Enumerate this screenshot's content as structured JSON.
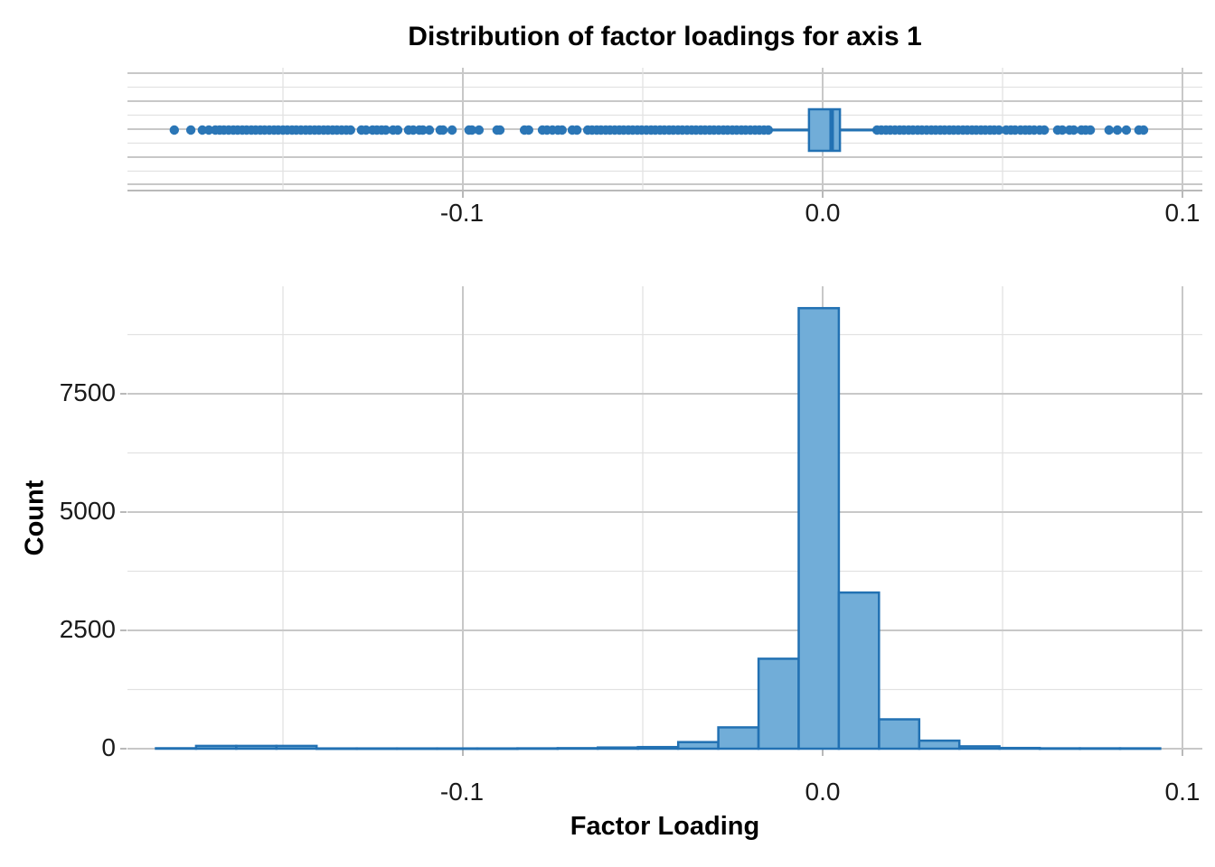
{
  "title": "Distribution of factor loadings for axis 1",
  "axes": {
    "x_tick_labels": [
      "-0.1",
      "0.0",
      "0.1"
    ],
    "y_tick_labels": [
      "0",
      "2500",
      "5000",
      "7500"
    ],
    "xlabel": "Factor Loading",
    "ylabel": "Count"
  },
  "colors": {
    "blue_stroke": "#2271b3",
    "blue_fill": "#71add8",
    "point_blue": "#2b76b6",
    "grid_major": "#c8c8c8",
    "grid_minor": "#e2e2e2",
    "axis_gray": "#b9b9b9"
  },
  "chart_data": [
    {
      "type": "boxplot",
      "orientation": "horizontal",
      "variable": "Factor Loading",
      "xlim": [
        -0.1932,
        0.1055
      ],
      "x_ticks": [
        -0.1,
        0.0,
        0.1
      ],
      "x_minor_ticks": [
        -0.15,
        -0.05,
        0.05
      ],
      "box": {
        "q1": -0.0038,
        "median": 0.0025,
        "q3": 0.0048,
        "whisker_low": -0.0143,
        "whisker_high": 0.0146
      },
      "outliers": [
        -0.1802,
        -0.1756,
        -0.1724,
        -0.1706,
        -0.1688,
        -0.1676,
        -0.1664,
        -0.1651,
        -0.1638,
        -0.1626,
        -0.1613,
        -0.1601,
        -0.1588,
        -0.1576,
        -0.1563,
        -0.1551,
        -0.1538,
        -0.1525,
        -0.1513,
        -0.15,
        -0.1488,
        -0.1475,
        -0.1463,
        -0.145,
        -0.1437,
        -0.1425,
        -0.1412,
        -0.14,
        -0.1387,
        -0.1375,
        -0.1362,
        -0.135,
        -0.1337,
        -0.1324,
        -0.1312,
        -0.1282,
        -0.1269,
        -0.1251,
        -0.1239,
        -0.1226,
        -0.1214,
        -0.1194,
        -0.1181,
        -0.1151,
        -0.1138,
        -0.1121,
        -0.1111,
        -0.1093,
        -0.1063,
        -0.1055,
        -0.103,
        -0.0983,
        -0.0975,
        -0.0955,
        -0.0905,
        -0.0897,
        -0.0829,
        -0.0817,
        -0.0779,
        -0.0766,
        -0.0751,
        -0.0736,
        -0.0724,
        -0.0696,
        -0.0683,
        -0.0653,
        -0.0641,
        -0.0628,
        -0.0616,
        -0.0603,
        -0.0591,
        -0.0578,
        -0.0565,
        -0.0553,
        -0.054,
        -0.0528,
        -0.0515,
        -0.0503,
        -0.049,
        -0.0477,
        -0.0465,
        -0.0452,
        -0.044,
        -0.0427,
        -0.0415,
        -0.0402,
        -0.039,
        -0.0377,
        -0.0364,
        -0.0352,
        -0.0339,
        -0.0327,
        -0.0314,
        -0.0302,
        -0.0289,
        -0.0276,
        -0.0264,
        -0.0251,
        -0.0239,
        -0.0226,
        -0.0214,
        -0.0201,
        -0.0188,
        -0.0176,
        -0.0163,
        -0.0151,
        0.0151,
        0.0163,
        0.0176,
        0.0188,
        0.0201,
        0.0214,
        0.0226,
        0.0239,
        0.0251,
        0.0264,
        0.0276,
        0.0289,
        0.0302,
        0.0314,
        0.0327,
        0.0339,
        0.0352,
        0.0364,
        0.0377,
        0.039,
        0.0402,
        0.0415,
        0.0427,
        0.044,
        0.0452,
        0.0465,
        0.0477,
        0.049,
        0.051,
        0.0523,
        0.0535,
        0.055,
        0.0563,
        0.0575,
        0.0588,
        0.0603,
        0.0616,
        0.0653,
        0.0666,
        0.0686,
        0.0698,
        0.0719,
        0.0731,
        0.0744,
        0.0796,
        0.0819,
        0.0844,
        0.0879,
        0.0892
      ]
    },
    {
      "type": "bar",
      "subtype": "histogram",
      "xlabel": "Factor Loading",
      "ylabel": "Count",
      "xlim": [
        -0.1932,
        0.1055
      ],
      "ylim": [
        0,
        9770
      ],
      "x_ticks": [
        -0.1,
        0.0,
        0.1
      ],
      "x_minor_ticks": [
        -0.15,
        -0.05,
        0.05
      ],
      "y_ticks": [
        0,
        2500,
        5000,
        7500
      ],
      "y_minor_ticks": [
        1250,
        3750,
        6250,
        8750
      ],
      "bin_start": -0.1853,
      "bin_width": 0.011165,
      "counts": [
        10,
        60,
        60,
        60,
        5,
        5,
        5,
        5,
        5,
        8,
        12,
        25,
        35,
        140,
        450,
        1900,
        9310,
        3300,
        620,
        170,
        50,
        15,
        8,
        8,
        8
      ],
      "peak_count": 9310,
      "grid": true,
      "legend": "none"
    }
  ]
}
